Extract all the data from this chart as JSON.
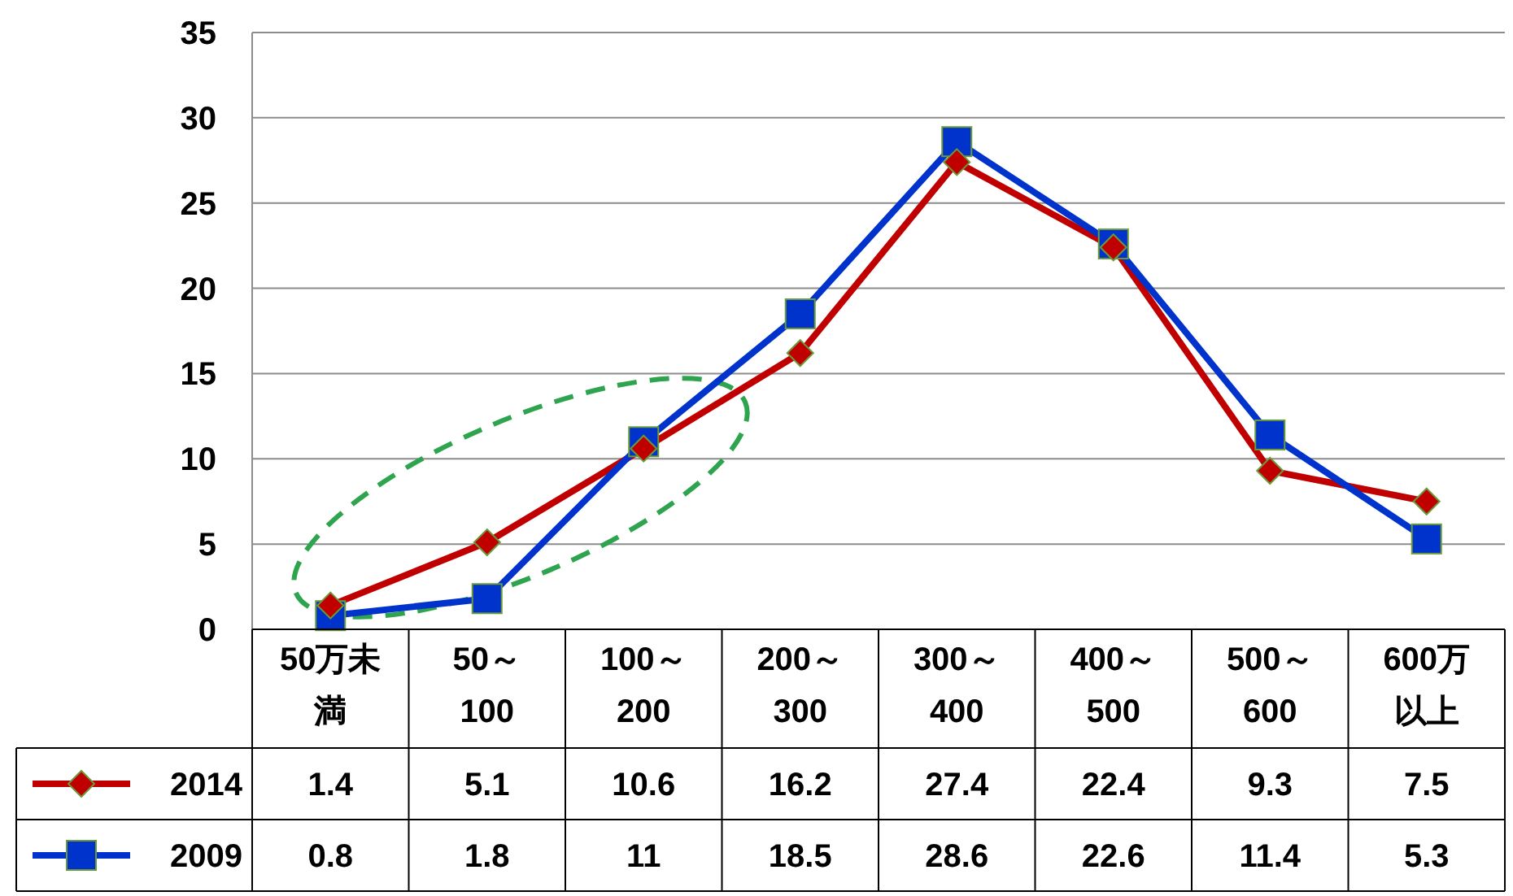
{
  "chart_data": {
    "type": "line",
    "categories": [
      "50万未満",
      "50～100",
      "100～200",
      "200～300",
      "300～400",
      "400～500",
      "500～600",
      "600万以上"
    ],
    "series": [
      {
        "name": "2014",
        "color": "#c00000",
        "marker": "diamond",
        "values": [
          1.4,
          5.1,
          10.6,
          16.2,
          27.4,
          22.4,
          9.3,
          7.5
        ]
      },
      {
        "name": "2009",
        "color": "#0033cc",
        "marker": "square",
        "values": [
          0.8,
          1.8,
          11,
          18.5,
          28.6,
          22.6,
          11.4,
          5.3
        ]
      }
    ],
    "ylim": [
      0,
      35
    ],
    "yticks": [
      0,
      5,
      10,
      15,
      20,
      25,
      30,
      35
    ],
    "grid": "y",
    "legend": "bottom left",
    "data_labels": true,
    "line_style": "solid"
  }
}
